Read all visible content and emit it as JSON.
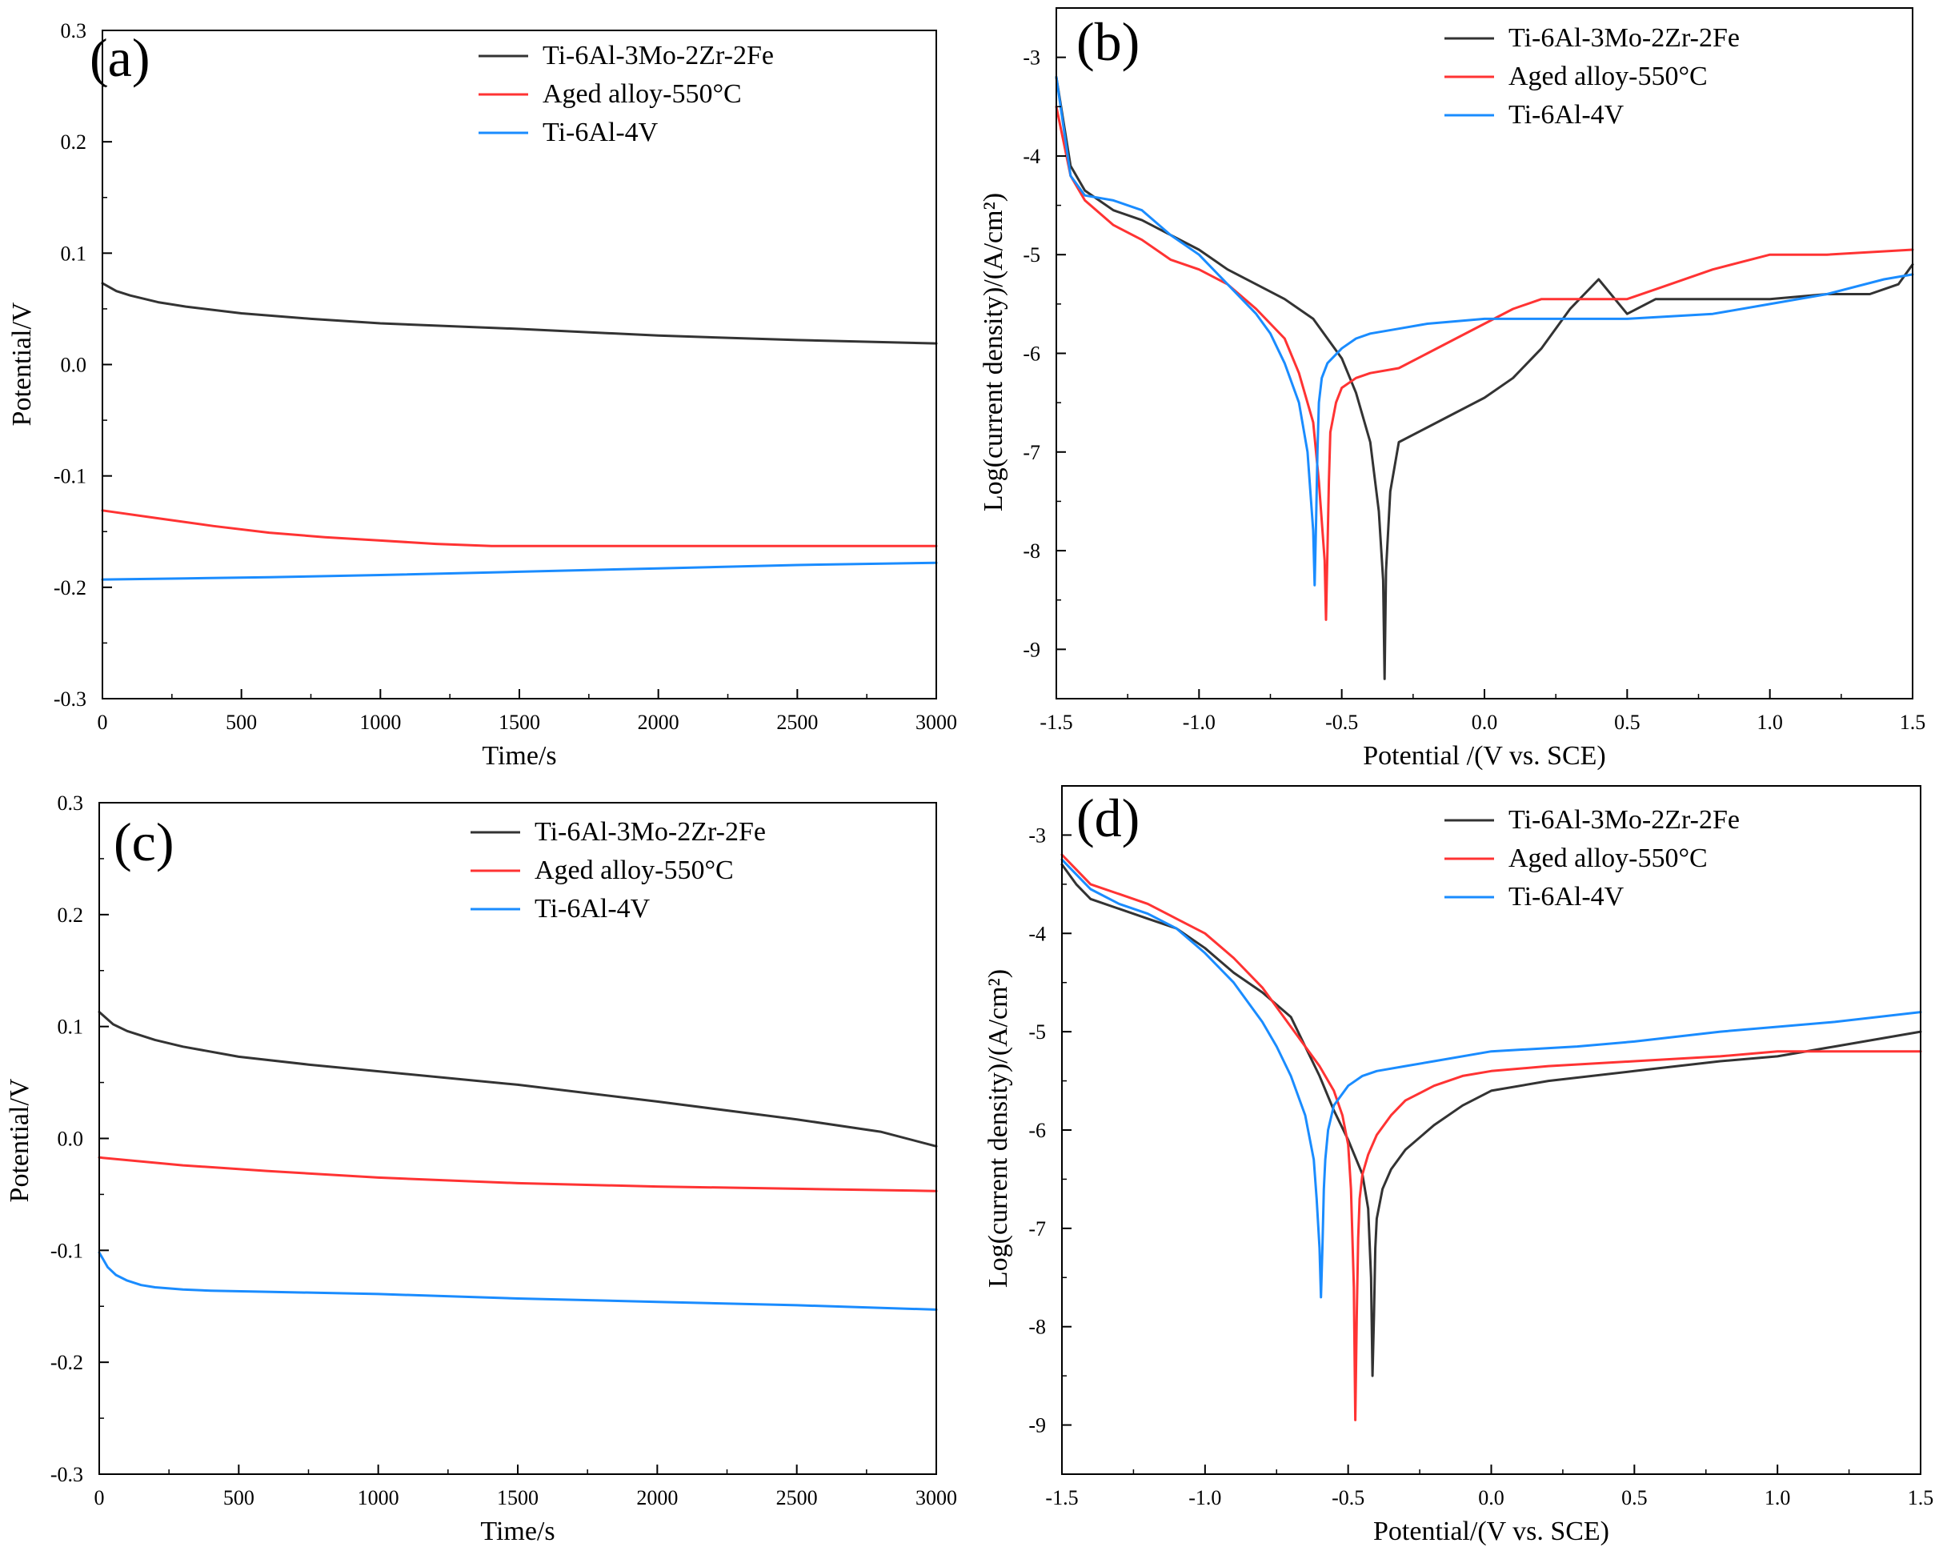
{
  "colors": {
    "black": "#333333",
    "red": "#ff3333",
    "blue": "#1a8cff",
    "axis": "#000000"
  },
  "chart_data": [
    {
      "type": "line",
      "panel_label": "(a)",
      "xlabel": "Time/s",
      "ylabel": "Potential/V",
      "xlim": [
        0,
        3000
      ],
      "ylim": [
        -0.3,
        0.3
      ],
      "xticks": [
        0,
        500,
        1000,
        1500,
        2000,
        2500,
        3000
      ],
      "yticks": [
        -0.3,
        -0.2,
        -0.1,
        0.0,
        0.1,
        0.2,
        0.3
      ],
      "xtick_labels": [
        "0",
        "500",
        "1000",
        "1500",
        "2000",
        "2500",
        "3000"
      ],
      "ytick_labels": [
        "-0.3",
        "-0.2",
        "-0.1",
        "0.0",
        "0.1",
        "0.2",
        "0.3"
      ],
      "legend": [
        "Ti-6Al-3Mo-2Zr-2Fe",
        "Aged alloy-550°C",
        "Ti-6Al-4V"
      ],
      "series": [
        {
          "name": "Ti-6Al-3Mo-2Zr-2Fe",
          "color": "#333333",
          "x": [
            0,
            50,
            100,
            200,
            300,
            500,
            750,
            1000,
            1500,
            2000,
            2500,
            3000
          ],
          "y": [
            0.073,
            0.066,
            0.062,
            0.056,
            0.052,
            0.046,
            0.041,
            0.037,
            0.032,
            0.026,
            0.022,
            0.019
          ]
        },
        {
          "name": "Aged alloy-550°C",
          "color": "#ff3333",
          "x": [
            0,
            200,
            400,
            600,
            800,
            1000,
            1200,
            1400,
            1700,
            2000,
            2500,
            3000
          ],
          "y": [
            -0.131,
            -0.138,
            -0.145,
            -0.151,
            -0.155,
            -0.158,
            -0.161,
            -0.163,
            -0.163,
            -0.163,
            -0.163,
            -0.163
          ]
        },
        {
          "name": "Ti-6Al-4V",
          "color": "#1a8cff",
          "x": [
            0,
            300,
            600,
            1000,
            1500,
            2000,
            2500,
            3000
          ],
          "y": [
            -0.193,
            -0.192,
            -0.191,
            -0.189,
            -0.186,
            -0.183,
            -0.18,
            -0.178
          ]
        }
      ]
    },
    {
      "type": "line",
      "panel_label": "(b)",
      "xlabel": "Potential /(V vs. SCE)",
      "ylabel": "Log(current density)/(A/cm²)",
      "xlim": [
        -1.5,
        1.5
      ],
      "ylim": [
        -9.5,
        -2.5
      ],
      "xticks": [
        -1.5,
        -1.0,
        -0.5,
        0.0,
        0.5,
        1.0,
        1.5
      ],
      "yticks": [
        -9,
        -8,
        -7,
        -6,
        -5,
        -4,
        -3
      ],
      "xtick_labels": [
        "-1.5",
        "-1.0",
        "-0.5",
        "0.0",
        "0.5",
        "1.0",
        "1.5"
      ],
      "ytick_labels": [
        "-9",
        "-8",
        "-7",
        "-6",
        "-5",
        "-4",
        "-3"
      ],
      "legend": [
        "Ti-6Al-3Mo-2Zr-2Fe",
        "Aged alloy-550°C",
        "Ti-6Al-4V"
      ],
      "series": [
        {
          "name": "Ti-6Al-3Mo-2Zr-2Fe",
          "color": "#333333",
          "x": [
            -1.5,
            -1.45,
            -1.4,
            -1.3,
            -1.2,
            -1.1,
            -1.0,
            -0.9,
            -0.8,
            -0.7,
            -0.6,
            -0.5,
            -0.45,
            -0.4,
            -0.37,
            -0.355,
            -0.35,
            -0.345,
            -0.33,
            -0.3,
            -0.2,
            -0.1,
            0.0,
            0.1,
            0.2,
            0.3,
            0.4,
            0.5,
            0.6,
            0.8,
            1.0,
            1.2,
            1.35,
            1.45,
            1.5
          ],
          "y": [
            -3.2,
            -4.1,
            -4.35,
            -4.55,
            -4.65,
            -4.8,
            -4.95,
            -5.15,
            -5.3,
            -5.45,
            -5.65,
            -6.05,
            -6.4,
            -6.9,
            -7.6,
            -8.3,
            -9.3,
            -8.2,
            -7.4,
            -6.9,
            -6.75,
            -6.6,
            -6.45,
            -6.25,
            -5.95,
            -5.55,
            -5.25,
            -5.6,
            -5.45,
            -5.45,
            -5.45,
            -5.4,
            -5.4,
            -5.3,
            -5.1
          ]
        },
        {
          "name": "Aged alloy-550°C",
          "color": "#ff3333",
          "x": [
            -1.5,
            -1.45,
            -1.4,
            -1.3,
            -1.2,
            -1.1,
            -1.0,
            -0.9,
            -0.8,
            -0.7,
            -0.65,
            -0.6,
            -0.58,
            -0.56,
            -0.555,
            -0.55,
            -0.545,
            -0.54,
            -0.52,
            -0.5,
            -0.45,
            -0.4,
            -0.3,
            -0.2,
            -0.1,
            0.0,
            0.1,
            0.2,
            0.3,
            0.4,
            0.5,
            0.6,
            0.8,
            1.0,
            1.2,
            1.5
          ],
          "y": [
            -3.5,
            -4.2,
            -4.45,
            -4.7,
            -4.85,
            -5.05,
            -5.15,
            -5.3,
            -5.55,
            -5.85,
            -6.2,
            -6.7,
            -7.3,
            -8.1,
            -8.7,
            -8.0,
            -7.3,
            -6.8,
            -6.5,
            -6.35,
            -6.25,
            -6.2,
            -6.15,
            -6.0,
            -5.85,
            -5.7,
            -5.55,
            -5.45,
            -5.45,
            -5.45,
            -5.45,
            -5.35,
            -5.15,
            -5.0,
            -5.0,
            -4.95
          ]
        },
        {
          "name": "Ti-6Al-4V",
          "color": "#1a8cff",
          "x": [
            -1.5,
            -1.45,
            -1.4,
            -1.3,
            -1.2,
            -1.1,
            -1.0,
            -0.9,
            -0.8,
            -0.75,
            -0.7,
            -0.65,
            -0.62,
            -0.6,
            -0.595,
            -0.59,
            -0.585,
            -0.58,
            -0.57,
            -0.55,
            -0.5,
            -0.45,
            -0.4,
            -0.3,
            -0.2,
            0.0,
            0.2,
            0.5,
            0.8,
            1.0,
            1.2,
            1.4,
            1.5
          ],
          "y": [
            -3.2,
            -4.2,
            -4.4,
            -4.45,
            -4.55,
            -4.8,
            -5.0,
            -5.3,
            -5.6,
            -5.8,
            -6.1,
            -6.5,
            -7.0,
            -7.8,
            -8.35,
            -7.7,
            -7.0,
            -6.5,
            -6.25,
            -6.1,
            -5.95,
            -5.85,
            -5.8,
            -5.75,
            -5.7,
            -5.65,
            -5.65,
            -5.65,
            -5.6,
            -5.5,
            -5.4,
            -5.25,
            -5.2
          ]
        }
      ]
    },
    {
      "type": "line",
      "panel_label": "(c)",
      "xlabel": "Time/s",
      "ylabel": "Potential/V",
      "xlim": [
        0,
        3000
      ],
      "ylim": [
        -0.3,
        0.3
      ],
      "xticks": [
        0,
        500,
        1000,
        1500,
        2000,
        2500,
        3000
      ],
      "yticks": [
        -0.3,
        -0.2,
        -0.1,
        0.0,
        0.1,
        0.2,
        0.3
      ],
      "xtick_labels": [
        "0",
        "500",
        "1000",
        "1500",
        "2000",
        "2500",
        "3000"
      ],
      "ytick_labels": [
        "-0.3",
        "-0.2",
        "-0.1",
        "0.0",
        "0.1",
        "0.2",
        "0.3"
      ],
      "legend": [
        "Ti-6Al-3Mo-2Zr-2Fe",
        "Aged alloy-550°C",
        "Ti-6Al-4V"
      ],
      "series": [
        {
          "name": "Ti-6Al-3Mo-2Zr-2Fe",
          "color": "#333333",
          "x": [
            0,
            50,
            100,
            200,
            300,
            500,
            750,
            1000,
            1500,
            2000,
            2500,
            2800,
            3000
          ],
          "y": [
            0.113,
            0.102,
            0.096,
            0.088,
            0.082,
            0.073,
            0.066,
            0.06,
            0.048,
            0.033,
            0.017,
            0.006,
            -0.007
          ]
        },
        {
          "name": "Aged alloy-550°C",
          "color": "#ff3333",
          "x": [
            0,
            300,
            600,
            1000,
            1500,
            2000,
            2500,
            3000
          ],
          "y": [
            -0.017,
            -0.024,
            -0.029,
            -0.035,
            -0.04,
            -0.043,
            -0.045,
            -0.047
          ]
        },
        {
          "name": "Ti-6Al-4V",
          "color": "#1a8cff",
          "x": [
            0,
            30,
            60,
            100,
            150,
            200,
            300,
            400,
            600,
            1000,
            1500,
            2000,
            2500,
            3000
          ],
          "y": [
            -0.102,
            -0.115,
            -0.122,
            -0.127,
            -0.131,
            -0.133,
            -0.135,
            -0.136,
            -0.137,
            -0.139,
            -0.143,
            -0.146,
            -0.149,
            -0.153
          ]
        }
      ]
    },
    {
      "type": "line",
      "panel_label": "(d)",
      "xlabel": "Potential/(V vs. SCE)",
      "ylabel": "Log(current density)/(A/cm²)",
      "xlim": [
        -1.5,
        1.5
      ],
      "ylim": [
        -9.5,
        -2.5
      ],
      "xticks": [
        -1.5,
        -1.0,
        -0.5,
        0.0,
        0.5,
        1.0,
        1.5
      ],
      "yticks": [
        -9,
        -8,
        -7,
        -6,
        -5,
        -4,
        -3
      ],
      "xtick_labels": [
        "-1.5",
        "-1.0",
        "-0.5",
        "0.0",
        "0.5",
        "1.0",
        "1.5"
      ],
      "ytick_labels": [
        "-9",
        "-8",
        "-7",
        "-6",
        "-5",
        "-4",
        "-3"
      ],
      "legend": [
        "Ti-6Al-3Mo-2Zr-2Fe",
        "Aged alloy-550°C",
        "Ti-6Al-4V"
      ],
      "series": [
        {
          "name": "Ti-6Al-3Mo-2Zr-2Fe",
          "color": "#333333",
          "x": [
            -1.5,
            -1.45,
            -1.4,
            -1.3,
            -1.2,
            -1.1,
            -1.0,
            -0.9,
            -0.8,
            -0.7,
            -0.65,
            -0.6,
            -0.55,
            -0.5,
            -0.45,
            -0.43,
            -0.42,
            -0.415,
            -0.41,
            -0.405,
            -0.4,
            -0.38,
            -0.35,
            -0.3,
            -0.2,
            -0.1,
            0.0,
            0.2,
            0.5,
            0.8,
            1.0,
            1.2,
            1.5
          ],
          "y": [
            -3.3,
            -3.5,
            -3.65,
            -3.75,
            -3.85,
            -3.95,
            -4.15,
            -4.4,
            -4.6,
            -4.85,
            -5.15,
            -5.45,
            -5.8,
            -6.1,
            -6.45,
            -6.8,
            -7.5,
            -8.5,
            -7.9,
            -7.2,
            -6.9,
            -6.6,
            -6.4,
            -6.2,
            -5.95,
            -5.75,
            -5.6,
            -5.5,
            -5.4,
            -5.3,
            -5.25,
            -5.15,
            -5.0
          ]
        },
        {
          "name": "Aged alloy-550°C",
          "color": "#ff3333",
          "x": [
            -1.5,
            -1.45,
            -1.4,
            -1.3,
            -1.2,
            -1.1,
            -1.0,
            -0.9,
            -0.8,
            -0.7,
            -0.6,
            -0.55,
            -0.52,
            -0.5,
            -0.49,
            -0.48,
            -0.475,
            -0.47,
            -0.465,
            -0.46,
            -0.45,
            -0.43,
            -0.4,
            -0.35,
            -0.3,
            -0.2,
            -0.1,
            0.0,
            0.2,
            0.5,
            0.8,
            1.0,
            1.2,
            1.5
          ],
          "y": [
            -3.2,
            -3.35,
            -3.5,
            -3.6,
            -3.7,
            -3.85,
            -4.0,
            -4.25,
            -4.55,
            -4.95,
            -5.35,
            -5.6,
            -5.85,
            -6.15,
            -6.6,
            -7.6,
            -8.95,
            -7.9,
            -7.1,
            -6.7,
            -6.45,
            -6.25,
            -6.05,
            -5.85,
            -5.7,
            -5.55,
            -5.45,
            -5.4,
            -5.35,
            -5.3,
            -5.25,
            -5.2,
            -5.2,
            -5.2
          ]
        },
        {
          "name": "Ti-6Al-4V",
          "color": "#1a8cff",
          "x": [
            -1.5,
            -1.45,
            -1.4,
            -1.3,
            -1.2,
            -1.1,
            -1.0,
            -0.9,
            -0.8,
            -0.75,
            -0.7,
            -0.65,
            -0.62,
            -0.61,
            -0.6,
            -0.595,
            -0.59,
            -0.585,
            -0.58,
            -0.57,
            -0.55,
            -0.5,
            -0.45,
            -0.4,
            -0.3,
            -0.2,
            0.0,
            0.3,
            0.5,
            0.8,
            1.0,
            1.2,
            1.5
          ],
          "y": [
            -3.25,
            -3.4,
            -3.55,
            -3.7,
            -3.8,
            -3.95,
            -4.2,
            -4.5,
            -4.9,
            -5.15,
            -5.45,
            -5.85,
            -6.3,
            -6.7,
            -7.2,
            -7.7,
            -7.2,
            -6.6,
            -6.3,
            -6.0,
            -5.75,
            -5.55,
            -5.45,
            -5.4,
            -5.35,
            -5.3,
            -5.2,
            -5.15,
            -5.1,
            -5.0,
            -4.95,
            -4.9,
            -4.8
          ]
        }
      ]
    }
  ]
}
